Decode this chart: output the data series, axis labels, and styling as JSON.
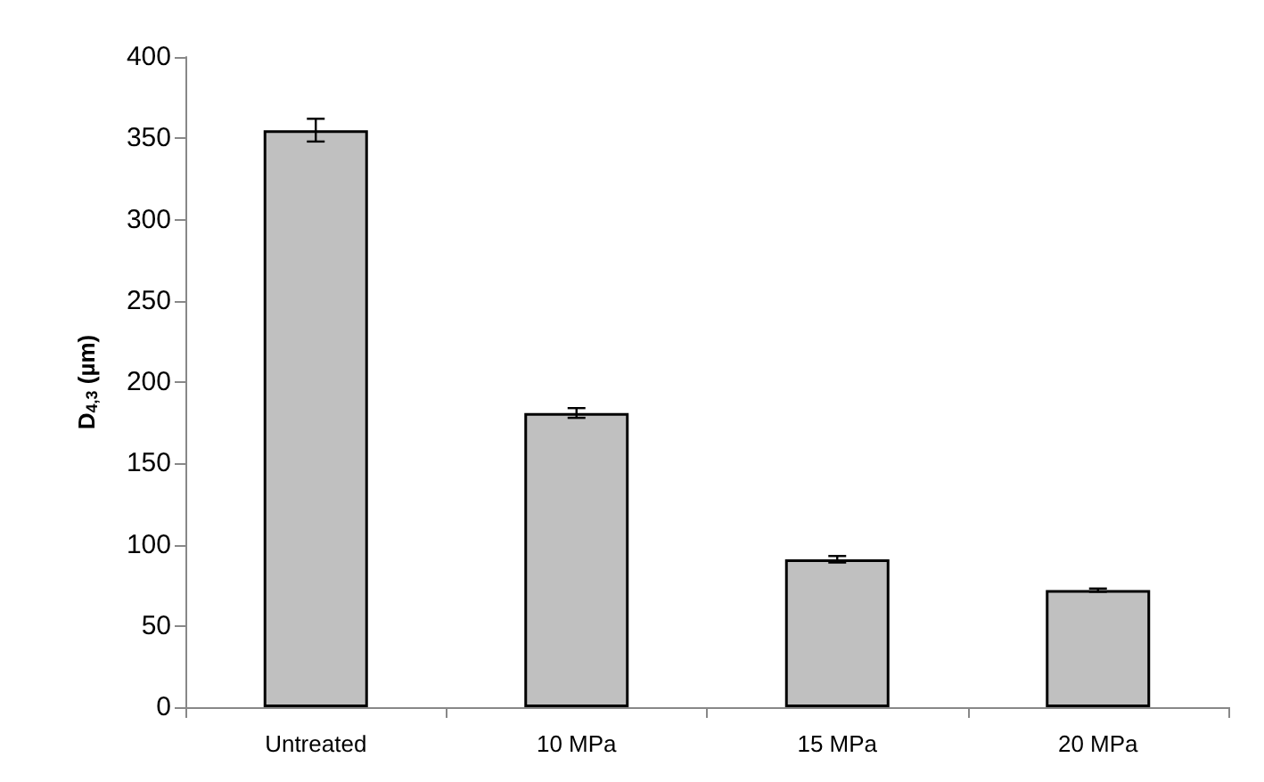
{
  "chart_data": {
    "type": "bar",
    "ylabel": "D$_{4,3}$ (µm)",
    "categories": [
      "Untreated",
      "10 MPa",
      "15 MPa",
      "20 MPa"
    ],
    "values": [
      355,
      181,
      91,
      72
    ],
    "errors": [
      7,
      3,
      2,
      1
    ],
    "color": "#c0c0c0",
    "ylim": [
      0,
      400
    ],
    "yticks": [
      0,
      50,
      100,
      150,
      200,
      250,
      300,
      350,
      400
    ],
    "grid": false
  }
}
